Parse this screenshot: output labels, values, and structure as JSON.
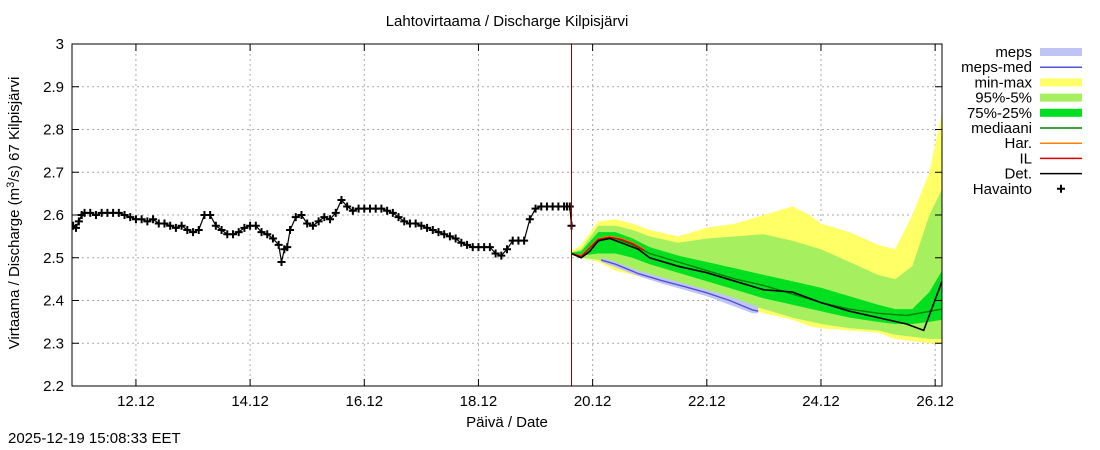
{
  "chart_data": {
    "type": "line",
    "title": "Lahtovirtaama / Discharge  Kilpisjärvi",
    "xlabel": "Päivä / Date",
    "ylabel_prefix": "Virtaama / Discharge (m",
    "ylabel_sup": "3",
    "ylabel_suffix": "/s)  67 Kilpisjärvi",
    "xlim": [
      10.88,
      26.12
    ],
    "ylim": [
      2.2,
      3.0
    ],
    "grid": true,
    "legend_position": "right",
    "yticks": [
      2.2,
      2.3,
      2.4,
      2.5,
      2.6,
      2.7,
      2.8,
      2.9,
      3.0
    ],
    "ytick_labels": [
      "2.2",
      "2.3",
      "2.4",
      "2.5",
      "2.6",
      "2.7",
      "2.8",
      "2.9",
      "3"
    ],
    "xticks": [
      12,
      14,
      16,
      18,
      20,
      22,
      24,
      26
    ],
    "xtick_labels": [
      "12.12",
      "14.12",
      "16.12",
      "18.12",
      "20.12",
      "22.12",
      "24.12",
      "26.12"
    ],
    "forecast_start": 19.63,
    "legend": [
      {
        "label": "meps",
        "kind": "band",
        "color": "#c0c4f4"
      },
      {
        "label": "meps-med",
        "kind": "line",
        "color": "#5050d8"
      },
      {
        "label": "min-max",
        "kind": "band",
        "color": "#ffff66"
      },
      {
        "label": "95%-5%",
        "kind": "band",
        "color": "#a6f060"
      },
      {
        "label": "75%-25%",
        "kind": "band",
        "color": "#00e020"
      },
      {
        "label": "mediaani",
        "kind": "line",
        "color": "#008000"
      },
      {
        "label": "Har.",
        "kind": "line",
        "color": "#ff8000"
      },
      {
        "label": "IL",
        "kind": "line",
        "color": "#e00000"
      },
      {
        "label": "Det.",
        "kind": "line",
        "color": "#000000"
      },
      {
        "label": "Havainto",
        "kind": "marker",
        "color": "#000000"
      }
    ],
    "observed": {
      "x": [
        10.9,
        10.95,
        11.0,
        11.05,
        11.1,
        11.2,
        11.3,
        11.4,
        11.5,
        11.6,
        11.7,
        11.8,
        11.9,
        12.0,
        12.1,
        12.2,
        12.3,
        12.4,
        12.5,
        12.6,
        12.7,
        12.8,
        12.9,
        13.0,
        13.1,
        13.2,
        13.3,
        13.4,
        13.5,
        13.6,
        13.7,
        13.8,
        13.9,
        14.0,
        14.1,
        14.2,
        14.3,
        14.4,
        14.5,
        14.55,
        14.6,
        14.65,
        14.7,
        14.8,
        14.9,
        15.0,
        15.1,
        15.2,
        15.3,
        15.4,
        15.5,
        15.6,
        15.7,
        15.8,
        15.9,
        16.0,
        16.1,
        16.2,
        16.3,
        16.4,
        16.5,
        16.6,
        16.7,
        16.8,
        16.9,
        17.0,
        17.1,
        17.2,
        17.3,
        17.4,
        17.5,
        17.6,
        17.7,
        17.8,
        17.9,
        18.0,
        18.1,
        18.2,
        18.3,
        18.4,
        18.5,
        18.6,
        18.7,
        18.8,
        18.9,
        19.0,
        19.1,
        19.2,
        19.3,
        19.4,
        19.5,
        19.55,
        19.6,
        19.63
      ],
      "y": [
        2.575,
        2.57,
        2.585,
        2.6,
        2.605,
        2.605,
        2.6,
        2.605,
        2.605,
        2.605,
        2.605,
        2.6,
        2.595,
        2.59,
        2.59,
        2.585,
        2.59,
        2.58,
        2.58,
        2.575,
        2.57,
        2.575,
        2.565,
        2.56,
        2.565,
        2.6,
        2.6,
        2.575,
        2.565,
        2.555,
        2.555,
        2.56,
        2.57,
        2.575,
        2.575,
        2.56,
        2.555,
        2.545,
        2.53,
        2.49,
        2.52,
        2.525,
        2.565,
        2.595,
        2.6,
        2.58,
        2.575,
        2.585,
        2.595,
        2.59,
        2.605,
        2.635,
        2.62,
        2.61,
        2.615,
        2.615,
        2.615,
        2.615,
        2.615,
        2.61,
        2.605,
        2.595,
        2.585,
        2.58,
        2.58,
        2.575,
        2.57,
        2.565,
        2.56,
        2.555,
        2.55,
        2.545,
        2.535,
        2.53,
        2.525,
        2.525,
        2.525,
        2.525,
        2.51,
        2.505,
        2.52,
        2.54,
        2.54,
        2.54,
        2.59,
        2.615,
        2.62,
        2.62,
        2.62,
        2.62,
        2.62,
        2.62,
        2.62,
        2.575
      ]
    },
    "bands": {
      "min_max": {
        "x": [
          19.63,
          19.8,
          20.1,
          20.4,
          20.7,
          21.0,
          21.5,
          22.0,
          22.5,
          23.0,
          23.5,
          23.8,
          24.0,
          24.5,
          25.0,
          25.3,
          25.6,
          25.9,
          26.12
        ],
        "upper": [
          2.515,
          2.53,
          2.585,
          2.59,
          2.58,
          2.565,
          2.55,
          2.57,
          2.58,
          2.6,
          2.62,
          2.6,
          2.58,
          2.56,
          2.53,
          2.52,
          2.6,
          2.7,
          2.84
        ],
        "lower": [
          2.505,
          2.5,
          2.49,
          2.47,
          2.46,
          2.45,
          2.43,
          2.41,
          2.39,
          2.37,
          2.355,
          2.34,
          2.335,
          2.33,
          2.325,
          2.31,
          2.305,
          2.3,
          2.3
        ]
      },
      "p95_5": {
        "x": [
          19.63,
          19.8,
          20.1,
          20.4,
          20.7,
          21.0,
          21.5,
          22.0,
          22.5,
          23.0,
          23.5,
          24.0,
          24.5,
          25.0,
          25.3,
          25.6,
          25.9,
          26.12
        ],
        "upper": [
          2.513,
          2.52,
          2.575,
          2.575,
          2.565,
          2.55,
          2.535,
          2.545,
          2.55,
          2.555,
          2.54,
          2.52,
          2.49,
          2.46,
          2.45,
          2.48,
          2.6,
          2.66
        ],
        "lower": [
          2.507,
          2.5,
          2.495,
          2.48,
          2.47,
          2.46,
          2.44,
          2.42,
          2.4,
          2.38,
          2.36,
          2.345,
          2.335,
          2.33,
          2.32,
          2.315,
          2.31,
          2.31
        ]
      },
      "p75_25": {
        "x": [
          19.63,
          19.8,
          20.1,
          20.4,
          20.7,
          21.0,
          21.5,
          22.0,
          22.5,
          23.0,
          23.5,
          24.0,
          24.5,
          25.0,
          25.3,
          25.6,
          25.9,
          26.12
        ],
        "upper": [
          2.512,
          2.515,
          2.56,
          2.56,
          2.545,
          2.525,
          2.505,
          2.49,
          2.475,
          2.46,
          2.445,
          2.43,
          2.41,
          2.39,
          2.38,
          2.38,
          2.42,
          2.47
        ],
        "lower": [
          2.508,
          2.505,
          2.51,
          2.51,
          2.5,
          2.485,
          2.465,
          2.445,
          2.425,
          2.405,
          2.39,
          2.375,
          2.36,
          2.35,
          2.345,
          2.345,
          2.35,
          2.355
        ]
      },
      "meps": {
        "x": [
          20.15,
          20.4,
          20.8,
          21.2,
          21.6,
          22.0,
          22.4,
          22.8,
          22.9
        ],
        "upper": [
          2.5,
          2.49,
          2.47,
          2.455,
          2.44,
          2.425,
          2.41,
          2.39,
          2.385
        ],
        "lower": [
          2.49,
          2.478,
          2.457,
          2.44,
          2.425,
          2.41,
          2.39,
          2.37,
          2.37
        ]
      }
    },
    "series": [
      {
        "name": "meps-med",
        "color": "#5050d8",
        "x": [
          20.15,
          20.4,
          20.8,
          21.2,
          21.6,
          22.0,
          22.4,
          22.8,
          22.9
        ],
        "y": [
          2.495,
          2.485,
          2.463,
          2.447,
          2.433,
          2.418,
          2.4,
          2.378,
          2.375
        ]
      },
      {
        "name": "mediaani",
        "color": "#008000",
        "x": [
          19.63,
          19.8,
          20.0,
          20.2,
          20.4,
          20.7,
          21.0,
          21.5,
          22.0,
          22.5,
          23.0,
          23.5,
          24.0,
          24.5,
          25.0,
          25.5,
          26.12
        ],
        "y": [
          2.51,
          2.505,
          2.53,
          2.545,
          2.545,
          2.53,
          2.51,
          2.49,
          2.47,
          2.45,
          2.435,
          2.415,
          2.395,
          2.38,
          2.37,
          2.365,
          2.38
        ]
      },
      {
        "name": "Har.",
        "color": "#ff8000",
        "x": [
          19.63,
          19.8,
          19.95,
          20.1,
          20.3,
          20.5,
          20.7,
          20.9
        ],
        "y": [
          2.51,
          2.505,
          2.525,
          2.545,
          2.55,
          2.545,
          2.535,
          2.52
        ]
      },
      {
        "name": "IL",
        "color": "#e00000",
        "x": [
          19.63,
          19.8,
          19.95,
          20.1,
          20.3,
          20.5,
          20.7,
          20.9
        ],
        "y": [
          2.51,
          2.503,
          2.523,
          2.543,
          2.548,
          2.543,
          2.533,
          2.518
        ]
      },
      {
        "name": "Det.",
        "color": "#000000",
        "x": [
          19.63,
          19.8,
          19.95,
          20.1,
          20.3,
          20.5,
          20.8,
          21.0,
          21.5,
          22.0,
          22.5,
          23.0,
          23.5,
          24.0,
          24.5,
          25.0,
          25.5,
          25.8,
          26.12
        ],
        "y": [
          2.51,
          2.5,
          2.515,
          2.54,
          2.545,
          2.535,
          2.52,
          2.5,
          2.48,
          2.465,
          2.445,
          2.425,
          2.42,
          2.395,
          2.375,
          2.36,
          2.345,
          2.33,
          2.445
        ]
      }
    ]
  },
  "timestamp": "2025-12-19 15:08:33 EET"
}
